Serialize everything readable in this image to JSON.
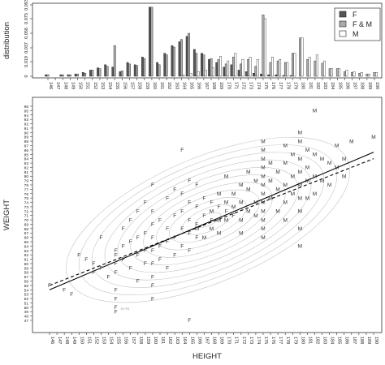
{
  "chart_data": [
    {
      "type": "bar",
      "ylabel": "distribution",
      "ylim": [
        0,
        0.093
      ],
      "yticks": [
        "0",
        "0.019",
        "0.037",
        "0.056",
        "0.075",
        "0.093"
      ],
      "categories": [
        146,
        147,
        148,
        149,
        150,
        151,
        152,
        153,
        154,
        155,
        156,
        157,
        158,
        159,
        160,
        161,
        162,
        163,
        164,
        165,
        166,
        167,
        168,
        169,
        170,
        171,
        172,
        173,
        174,
        175,
        176,
        177,
        178,
        179,
        180,
        181,
        182,
        183,
        184,
        185,
        186,
        187,
        188,
        189,
        190
      ],
      "legend": {
        "position": "top-right",
        "entries": [
          "F",
          "F & M",
          "M"
        ]
      },
      "series": [
        {
          "name": "F",
          "color": "#555555",
          "values": [
            0.002,
            0,
            0.002,
            0.002,
            0.003,
            0.005,
            0.008,
            0.011,
            0.015,
            0.012,
            0.006,
            0.018,
            0.015,
            0.025,
            0.09,
            0.018,
            0.03,
            0.04,
            0.045,
            0.052,
            0.035,
            0.03,
            0.022,
            0.018,
            0.012,
            0.015,
            0.008,
            0.006,
            0.004,
            0.003,
            0.002,
            0.002,
            0.001,
            0.001,
            0,
            0,
            0,
            0,
            0,
            0,
            0,
            0,
            0,
            0,
            0
          ]
        },
        {
          "name": "F & M",
          "color": "#aaaaaa",
          "values": [
            0.002,
            0,
            0.002,
            0.002,
            0.003,
            0.004,
            0.008,
            0.01,
            0.013,
            0.04,
            0.007,
            0.016,
            0.014,
            0.023,
            0.09,
            0.015,
            0.028,
            0.038,
            0.048,
            0.056,
            0.03,
            0.028,
            0.023,
            0.022,
            0.016,
            0.025,
            0.016,
            0.022,
            0.013,
            0.08,
            0.018,
            0.02,
            0.018,
            0.03,
            0.05,
            0.022,
            0.02,
            0.017,
            0.01,
            0.01,
            0.006,
            0.005,
            0.004,
            0.003,
            0.005
          ]
        },
        {
          "name": "M",
          "color": "#ffffff",
          "values": [
            0,
            0,
            0,
            0,
            0,
            0,
            0,
            0,
            0,
            0,
            0,
            0,
            0,
            0,
            0,
            0,
            0,
            0,
            0.002,
            0.004,
            0.006,
            0.008,
            0.011,
            0.026,
            0.02,
            0.03,
            0.022,
            0.025,
            0.022,
            0.075,
            0.025,
            0.022,
            0.018,
            0.03,
            0.05,
            0.025,
            0.028,
            0.02,
            0.01,
            0.01,
            0.008,
            0.006,
            0.005,
            0.003,
            0.005
          ]
        }
      ]
    },
    {
      "type": "scatter",
      "xlabel": "HEIGHT",
      "ylabel": "WEIGHT",
      "xlim": [
        146,
        190
      ],
      "ylim": [
        47,
        96
      ],
      "xticks": [
        146,
        147,
        148,
        149,
        150,
        151,
        152,
        153,
        154,
        155,
        156,
        157,
        158,
        159,
        160,
        161,
        162,
        163,
        164,
        165,
        166,
        167,
        168,
        169,
        170,
        171,
        172,
        173,
        174,
        175,
        176,
        177,
        178,
        179,
        180,
        181,
        182,
        183,
        184,
        185,
        186,
        187,
        188,
        189,
        190
      ],
      "yticks": [
        47,
        48,
        49,
        50,
        51,
        52,
        53,
        54,
        55,
        56,
        57,
        58,
        59,
        60,
        61,
        62,
        63,
        64,
        65,
        66,
        67,
        68,
        69,
        70,
        71,
        72,
        73,
        74,
        75,
        76,
        77,
        78,
        79,
        80,
        81,
        82,
        83,
        84,
        85,
        86,
        87,
        88,
        89,
        90,
        91,
        92,
        93,
        94,
        95,
        96
      ],
      "contour_label": "1e-04",
      "lines": [
        {
          "style": "solid",
          "x": [
            146,
            190
          ],
          "y": [
            54,
            85.5
          ]
        },
        {
          "style": "dashed",
          "x": [
            146,
            190
          ],
          "y": [
            55,
            84
          ]
        }
      ],
      "points": [
        {
          "x": 146,
          "y": 55,
          "label": "F"
        },
        {
          "x": 148,
          "y": 54,
          "label": "F"
        },
        {
          "x": 149,
          "y": 53,
          "label": "F"
        },
        {
          "x": 150,
          "y": 62,
          "label": "F"
        },
        {
          "x": 151,
          "y": 61,
          "label": "F"
        },
        {
          "x": 152,
          "y": 60,
          "label": "F"
        },
        {
          "x": 152,
          "y": 58,
          "label": "F"
        },
        {
          "x": 153,
          "y": 66,
          "label": "F"
        },
        {
          "x": 153,
          "y": 59,
          "label": "F"
        },
        {
          "x": 154,
          "y": 57,
          "label": "F"
        },
        {
          "x": 155,
          "y": 63,
          "label": "F"
        },
        {
          "x": 155,
          "y": 62,
          "label": "F"
        },
        {
          "x": 155,
          "y": 60,
          "label": "F"
        },
        {
          "x": 155,
          "y": 58,
          "label": "F"
        },
        {
          "x": 155,
          "y": 54,
          "label": "F"
        },
        {
          "x": 155,
          "y": 52,
          "label": "F"
        },
        {
          "x": 155,
          "y": 50,
          "label": "F"
        },
        {
          "x": 155,
          "y": 49,
          "label": "F"
        },
        {
          "x": 156,
          "y": 68,
          "label": "F"
        },
        {
          "x": 156,
          "y": 64,
          "label": "F"
        },
        {
          "x": 156,
          "y": 61,
          "label": "F"
        },
        {
          "x": 157,
          "y": 70,
          "label": "F"
        },
        {
          "x": 157,
          "y": 65,
          "label": "F"
        },
        {
          "x": 157,
          "y": 59,
          "label": "F"
        },
        {
          "x": 158,
          "y": 72,
          "label": "F"
        },
        {
          "x": 158,
          "y": 66,
          "label": "F"
        },
        {
          "x": 158,
          "y": 62,
          "label": "F"
        },
        {
          "x": 158,
          "y": 56,
          "label": "F"
        },
        {
          "x": 159,
          "y": 74,
          "label": "F"
        },
        {
          "x": 159,
          "y": 67,
          "label": "F"
        },
        {
          "x": 159,
          "y": 63,
          "label": "F"
        },
        {
          "x": 159,
          "y": 60,
          "label": "F"
        },
        {
          "x": 160,
          "y": 78,
          "label": "F"
        },
        {
          "x": 160,
          "y": 72,
          "label": "F"
        },
        {
          "x": 160,
          "y": 69,
          "label": "F"
        },
        {
          "x": 160,
          "y": 66,
          "label": "F"
        },
        {
          "x": 160,
          "y": 63,
          "label": "F"
        },
        {
          "x": 160,
          "y": 60,
          "label": "F"
        },
        {
          "x": 160,
          "y": 57,
          "label": "F"
        },
        {
          "x": 160,
          "y": 55,
          "label": "F"
        },
        {
          "x": 160,
          "y": 52,
          "label": "F"
        },
        {
          "x": 161,
          "y": 70,
          "label": "F"
        },
        {
          "x": 161,
          "y": 64,
          "label": "F"
        },
        {
          "x": 161,
          "y": 61,
          "label": "F"
        },
        {
          "x": 162,
          "y": 75,
          "label": "F"
        },
        {
          "x": 162,
          "y": 68,
          "label": "F"
        },
        {
          "x": 162,
          "y": 65,
          "label": "F"
        },
        {
          "x": 162,
          "y": 59,
          "label": "F"
        },
        {
          "x": 163,
          "y": 77,
          "label": "F"
        },
        {
          "x": 163,
          "y": 71,
          "label": "F"
        },
        {
          "x": 163,
          "y": 66,
          "label": "F"
        },
        {
          "x": 163,
          "y": 62,
          "label": "F"
        },
        {
          "x": 164,
          "y": 86,
          "label": "F"
        },
        {
          "x": 164,
          "y": 76,
          "label": "F"
        },
        {
          "x": 164,
          "y": 72,
          "label": "F"
        },
        {
          "x": 164,
          "y": 68,
          "label": "F"
        },
        {
          "x": 164,
          "y": 64,
          "label": "F"
        },
        {
          "x": 165,
          "y": 79,
          "label": "F"
        },
        {
          "x": 165,
          "y": 74,
          "label": "F"
        },
        {
          "x": 165,
          "y": 70,
          "label": "F"
        },
        {
          "x": 165,
          "y": 67,
          "label": "F"
        },
        {
          "x": 165,
          "y": 63,
          "label": "F"
        },
        {
          "x": 165,
          "y": 47,
          "label": "F"
        },
        {
          "x": 166,
          "y": 78,
          "label": "F"
        },
        {
          "x": 166,
          "y": 73,
          "label": "F"
        },
        {
          "x": 166,
          "y": 69,
          "label": "F"
        },
        {
          "x": 166,
          "y": 66,
          "label": "F"
        },
        {
          "x": 167,
          "y": 75,
          "label": "F"
        },
        {
          "x": 167,
          "y": 71,
          "label": "F"
        },
        {
          "x": 168,
          "y": 74,
          "label": "F"
        },
        {
          "x": 168,
          "y": 70,
          "label": "F"
        },
        {
          "x": 169,
          "y": 73,
          "label": "F"
        },
        {
          "x": 170,
          "y": 72,
          "label": "F"
        },
        {
          "x": 171,
          "y": 71,
          "label": "F"
        },
        {
          "x": 166,
          "y": 68,
          "label": "M"
        },
        {
          "x": 167,
          "y": 66,
          "label": "M"
        },
        {
          "x": 168,
          "y": 72,
          "label": "M"
        },
        {
          "x": 168,
          "y": 68,
          "label": "M"
        },
        {
          "x": 169,
          "y": 76,
          "label": "M"
        },
        {
          "x": 169,
          "y": 70,
          "label": "M"
        },
        {
          "x": 169,
          "y": 67,
          "label": "M"
        },
        {
          "x": 170,
          "y": 80,
          "label": "M"
        },
        {
          "x": 170,
          "y": 74,
          "label": "M"
        },
        {
          "x": 170,
          "y": 70,
          "label": "M"
        },
        {
          "x": 171,
          "y": 76,
          "label": "M"
        },
        {
          "x": 171,
          "y": 73,
          "label": "M"
        },
        {
          "x": 172,
          "y": 78,
          "label": "M"
        },
        {
          "x": 172,
          "y": 74,
          "label": "M"
        },
        {
          "x": 172,
          "y": 70,
          "label": "M"
        },
        {
          "x": 172,
          "y": 67,
          "label": "M"
        },
        {
          "x": 173,
          "y": 81,
          "label": "M"
        },
        {
          "x": 173,
          "y": 77,
          "label": "M"
        },
        {
          "x": 173,
          "y": 72,
          "label": "M"
        },
        {
          "x": 174,
          "y": 79,
          "label": "M"
        },
        {
          "x": 174,
          "y": 74,
          "label": "M"
        },
        {
          "x": 174,
          "y": 71,
          "label": "M"
        },
        {
          "x": 175,
          "y": 88,
          "label": "M"
        },
        {
          "x": 175,
          "y": 86,
          "label": "M"
        },
        {
          "x": 175,
          "y": 84,
          "label": "M"
        },
        {
          "x": 175,
          "y": 82,
          "label": "M"
        },
        {
          "x": 175,
          "y": 80,
          "label": "M"
        },
        {
          "x": 175,
          "y": 78,
          "label": "M"
        },
        {
          "x": 175,
          "y": 76,
          "label": "M"
        },
        {
          "x": 175,
          "y": 74,
          "label": "M"
        },
        {
          "x": 175,
          "y": 72,
          "label": "M"
        },
        {
          "x": 175,
          "y": 70,
          "label": "M"
        },
        {
          "x": 175,
          "y": 68,
          "label": "M"
        },
        {
          "x": 175,
          "y": 66,
          "label": "M"
        },
        {
          "x": 176,
          "y": 83,
          "label": "M"
        },
        {
          "x": 176,
          "y": 79,
          "label": "M"
        },
        {
          "x": 176,
          "y": 75,
          "label": "M"
        },
        {
          "x": 177,
          "y": 81,
          "label": "M"
        },
        {
          "x": 177,
          "y": 77,
          "label": "M"
        },
        {
          "x": 177,
          "y": 72,
          "label": "M"
        },
        {
          "x": 178,
          "y": 87,
          "label": "M"
        },
        {
          "x": 178,
          "y": 83,
          "label": "M"
        },
        {
          "x": 178,
          "y": 78,
          "label": "M"
        },
        {
          "x": 178,
          "y": 74,
          "label": "M"
        },
        {
          "x": 178,
          "y": 70,
          "label": "M"
        },
        {
          "x": 179,
          "y": 85,
          "label": "M"
        },
        {
          "x": 179,
          "y": 80,
          "label": "M"
        },
        {
          "x": 179,
          "y": 76,
          "label": "M"
        },
        {
          "x": 180,
          "y": 90,
          "label": "M"
        },
        {
          "x": 180,
          "y": 88,
          "label": "M"
        },
        {
          "x": 180,
          "y": 84,
          "label": "M"
        },
        {
          "x": 180,
          "y": 81,
          "label": "M"
        },
        {
          "x": 180,
          "y": 78,
          "label": "M"
        },
        {
          "x": 180,
          "y": 75,
          "label": "M"
        },
        {
          "x": 180,
          "y": 72,
          "label": "M"
        },
        {
          "x": 180,
          "y": 68,
          "label": "M"
        },
        {
          "x": 180,
          "y": 64,
          "label": "M"
        },
        {
          "x": 181,
          "y": 86,
          "label": "M"
        },
        {
          "x": 181,
          "y": 82,
          "label": "M"
        },
        {
          "x": 181,
          "y": 79,
          "label": "M"
        },
        {
          "x": 181,
          "y": 75,
          "label": "M"
        },
        {
          "x": 182,
          "y": 95,
          "label": "M"
        },
        {
          "x": 182,
          "y": 85,
          "label": "M"
        },
        {
          "x": 182,
          "y": 80,
          "label": "M"
        },
        {
          "x": 182,
          "y": 76,
          "label": "M"
        },
        {
          "x": 183,
          "y": 84,
          "label": "M"
        },
        {
          "x": 183,
          "y": 79,
          "label": "M"
        },
        {
          "x": 184,
          "y": 83,
          "label": "M"
        },
        {
          "x": 184,
          "y": 78,
          "label": "M"
        },
        {
          "x": 185,
          "y": 87,
          "label": "M"
        },
        {
          "x": 185,
          "y": 82,
          "label": "M"
        },
        {
          "x": 186,
          "y": 84,
          "label": "M"
        },
        {
          "x": 186,
          "y": 80,
          "label": "M"
        },
        {
          "x": 187,
          "y": 88,
          "label": "M"
        },
        {
          "x": 190,
          "y": 89,
          "label": "M"
        }
      ]
    }
  ]
}
